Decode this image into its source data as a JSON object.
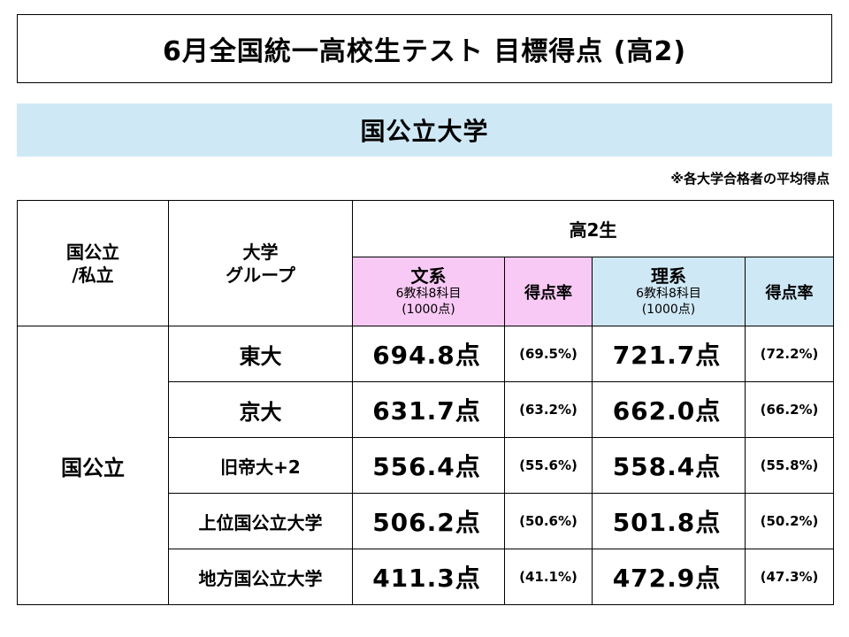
{
  "title": "6月全国統一高校生テスト 目標得点 (高2)",
  "subtitle": "国公立大学",
  "note": "※各大学合格者の平均得点",
  "table": {
    "col_type": "国公立\n/私立",
    "col_type_l1": "国公立",
    "col_type_l2": "/私立",
    "col_group_l1": "大学",
    "col_group_l2": "グループ",
    "grade": "高2生",
    "bunkei": {
      "title": "文系",
      "detail1": "6教科8科目",
      "detail2": "(1000点)"
    },
    "rikei": {
      "title": "理系",
      "detail1": "6教科8科目",
      "detail2": "(1000点)"
    },
    "rate_label": "得点率",
    "type_value": "国公立",
    "rows": [
      {
        "group": "東大",
        "bun_score": "694.8点",
        "bun_rate": "(69.5%)",
        "ri_score": "721.7点",
        "ri_rate": "(72.2%)"
      },
      {
        "group": "京大",
        "bun_score": "631.7点",
        "bun_rate": "(63.2%)",
        "ri_score": "662.0点",
        "ri_rate": "(66.2%)"
      },
      {
        "group": "旧帝大+2",
        "bun_score": "556.4点",
        "bun_rate": "(55.6%)",
        "ri_score": "558.4点",
        "ri_rate": "(55.8%)"
      },
      {
        "group": "上位国公立大学",
        "bun_score": "506.2点",
        "bun_rate": "(50.6%)",
        "ri_score": "501.8点",
        "ri_rate": "(50.2%)"
      },
      {
        "group": "地方国公立大学",
        "bun_score": "411.3点",
        "bun_rate": "(41.1%)",
        "ri_score": "472.9点",
        "ri_rate": "(47.3%)"
      }
    ]
  },
  "colors": {
    "bunkei_bg": "#f9c9f5",
    "rikei_bg": "#cfe8f6",
    "subtitle_bg": "#cfe8f6"
  }
}
